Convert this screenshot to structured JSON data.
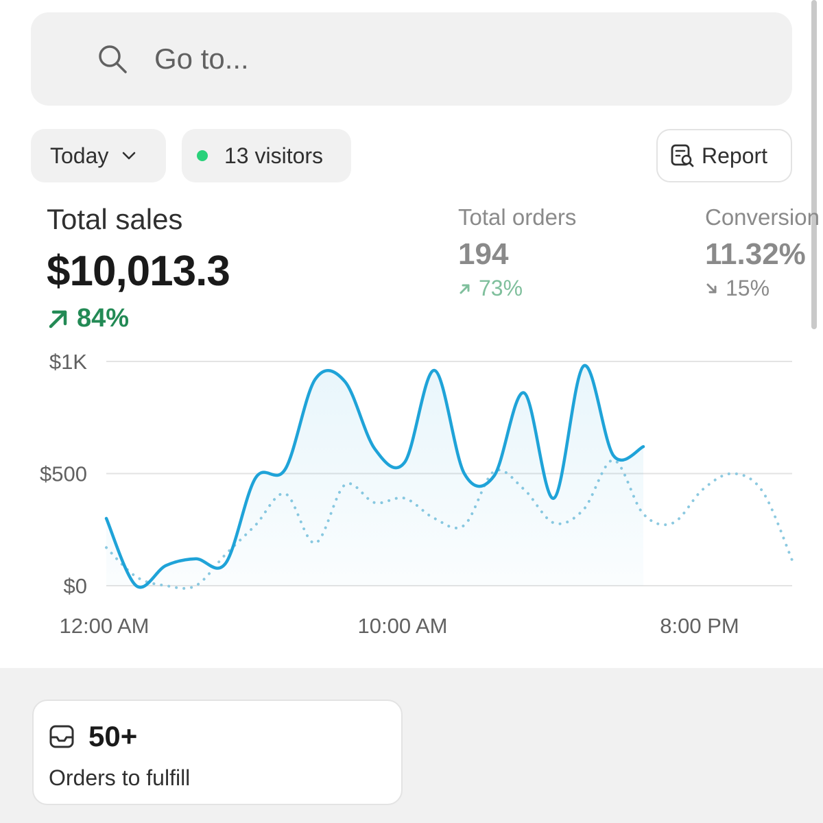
{
  "search": {
    "placeholder": "Go to..."
  },
  "filters": {
    "date_label": "Today",
    "visitors_label": "13 visitors",
    "report_label": "Report"
  },
  "metrics": {
    "total_sales": {
      "label": "Total sales",
      "value": "$10,013.3",
      "delta": "84%",
      "trend": "up"
    },
    "total_orders": {
      "label": "Total orders",
      "value": "194",
      "delta": "73%",
      "trend": "up"
    },
    "conversion": {
      "label": "Conversion",
      "value": "11.32%",
      "delta": "15%",
      "trend": "down"
    }
  },
  "chart_data": {
    "type": "line",
    "y_ticks": [
      "$1K",
      "$500",
      "$0"
    ],
    "x_ticks": [
      "12:00 AM",
      "10:00 AM",
      "8:00 PM"
    ],
    "ylim": [
      0,
      1000
    ],
    "grid": true,
    "series": [
      {
        "style": "solid",
        "color": "#1fa3d8",
        "x_hours": [
          0,
          1,
          2,
          3,
          4,
          5,
          6,
          7,
          8,
          9,
          10,
          11,
          12,
          13,
          14,
          15,
          16,
          17,
          18
        ],
        "values": [
          300,
          0,
          90,
          120,
          100,
          480,
          520,
          920,
          910,
          610,
          550,
          960,
          500,
          490,
          860,
          390,
          980,
          580,
          620
        ]
      },
      {
        "style": "dotted",
        "color": "#8cc9e0",
        "x_hours": [
          0,
          1,
          2,
          3,
          4,
          5,
          6,
          7,
          8,
          9,
          10,
          11,
          12,
          13,
          14,
          15,
          16,
          17,
          18,
          19,
          20,
          21,
          22,
          23
        ],
        "values": [
          170,
          40,
          0,
          0,
          140,
          270,
          410,
          190,
          450,
          370,
          390,
          300,
          270,
          510,
          430,
          280,
          340,
          560,
          320,
          280,
          430,
          500,
          420,
          110
        ]
      }
    ]
  },
  "card": {
    "count": "50+",
    "label": "Orders to fulfill"
  }
}
